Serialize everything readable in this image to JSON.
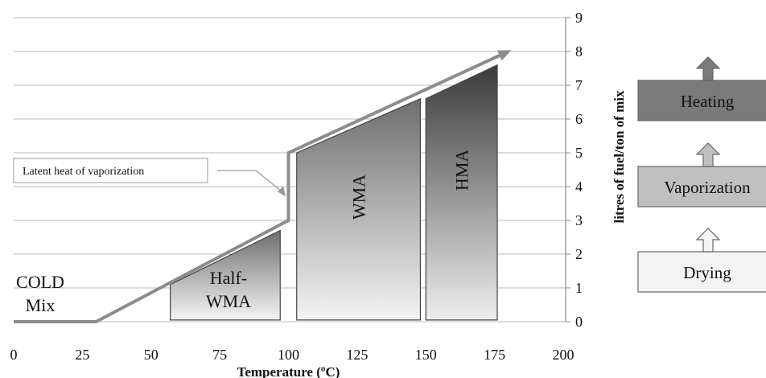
{
  "chart_data": {
    "type": "area",
    "xlabel": "Temperature (ºC)",
    "ylabel": "litres of fuel/ton of mix",
    "xlim": [
      0,
      200
    ],
    "ylim": [
      0,
      9
    ],
    "x_ticks": [
      "0",
      "25",
      "50",
      "75",
      "100",
      "125",
      "150",
      "175",
      "200"
    ],
    "y_ticks": [
      "0",
      "1",
      "2",
      "3",
      "4",
      "5",
      "6",
      "7",
      "8",
      "9"
    ],
    "y_axis_side": "right",
    "grid": "horizontal",
    "energy_curve": [
      {
        "x": 0,
        "y": 0
      },
      {
        "x": 30,
        "y": 0
      },
      {
        "x": 100,
        "y": 3
      },
      {
        "x": 100,
        "y": 5
      },
      {
        "x": 180,
        "y": 8
      }
    ],
    "regions": [
      {
        "label_lines": [
          "Half-",
          "WMA"
        ],
        "x_start": 57,
        "x_end": 97,
        "y_top_start": 1.1,
        "y_top_end": 2.7,
        "text_orientation": "horizontal"
      },
      {
        "label_lines": [
          "WMA"
        ],
        "x_start": 103,
        "x_end": 148,
        "y_top_start": 5,
        "y_top_end": 6.6,
        "text_orientation": "vertical"
      },
      {
        "label_lines": [
          "HMA"
        ],
        "x_start": 150,
        "x_end": 176,
        "y_top_start": 6.6,
        "y_top_end": 7.6,
        "text_orientation": "vertical"
      }
    ],
    "cold_mix_label": [
      "COLD",
      "Mix"
    ],
    "annotation": {
      "text": "Latent heat of vaporization",
      "points_to": {
        "x": 99,
        "y": 3.8
      }
    },
    "stages": [
      {
        "label": "Heating",
        "color": "#7a7a7a"
      },
      {
        "label": "Vaporization",
        "color": "#c0c0c0"
      },
      {
        "label": "Drying",
        "color": "#f4f4f4"
      }
    ]
  }
}
